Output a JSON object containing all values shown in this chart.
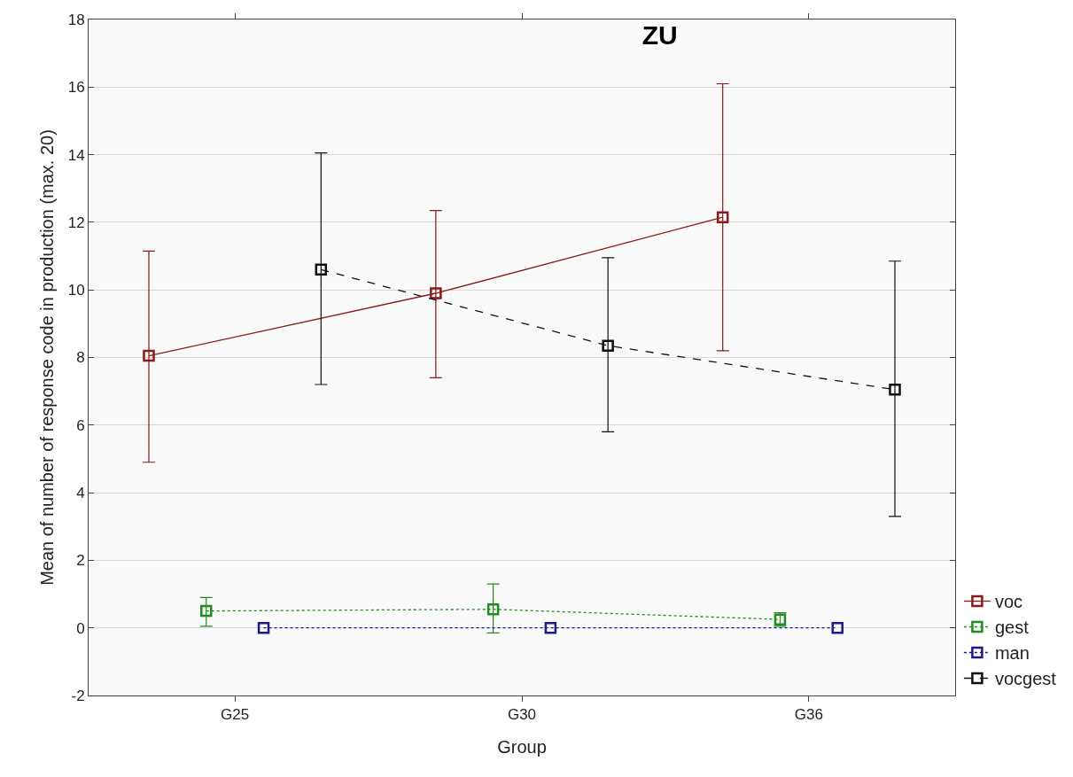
{
  "chart_data": {
    "type": "line",
    "title": "ZU",
    "xlabel": "Group",
    "ylabel": "Mean of number of response code in production (max. 20)",
    "categories": [
      "G25",
      "G30",
      "G36"
    ],
    "series": [
      {
        "name": "voc",
        "color": "#8b1a1a",
        "line_style": "solid",
        "values": [
          8.05,
          9.9,
          12.15
        ],
        "errors": [
          [
            4.9,
            11.15
          ],
          [
            7.4,
            12.35
          ],
          [
            8.2,
            16.1
          ]
        ]
      },
      {
        "name": "gest",
        "color": "#228b22",
        "line_style": "dotted",
        "values": [
          0.5,
          0.55,
          0.25
        ],
        "errors": [
          [
            0.05,
            0.9
          ],
          [
            -0.15,
            1.3
          ],
          [
            0.05,
            0.45
          ]
        ]
      },
      {
        "name": "man",
        "color": "#1a1a8b",
        "line_style": "dotted",
        "values": [
          0,
          0,
          0
        ]
      },
      {
        "name": "vocgest",
        "color": "#111111",
        "line_style": "dashed",
        "values": [
          10.6,
          8.35,
          7.05
        ],
        "errors": [
          [
            7.2,
            14.05
          ],
          [
            5.8,
            10.95
          ],
          [
            3.3,
            10.85
          ]
        ]
      }
    ],
    "ylim": [
      -2,
      18
    ],
    "yticks": [
      -2,
      0,
      2,
      4,
      6,
      8,
      10,
      12,
      14,
      16,
      18
    ],
    "grid": "y",
    "legend": "bottom right",
    "marker": "square"
  }
}
